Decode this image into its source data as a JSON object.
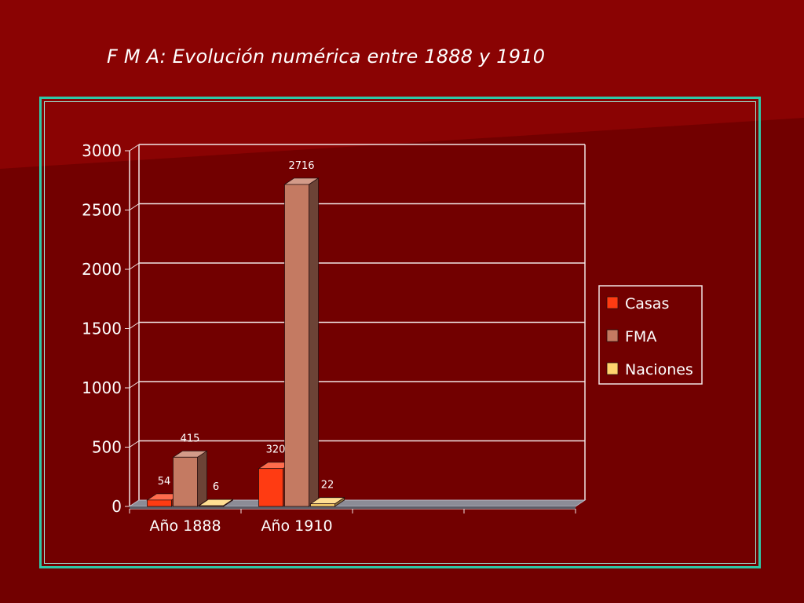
{
  "slide": {
    "title": "F M A: Evolución  numérica entre 1888  y  1910"
  },
  "colors": {
    "background": "#720000",
    "background_highlight": "#8a0303",
    "frame": "#2ec9a8",
    "gridline": "#f2e4e4"
  },
  "chart_data": {
    "type": "bar",
    "style": "3d-clustered-column",
    "title": "",
    "xlabel": "",
    "ylabel": "",
    "categories": [
      "Año 1888",
      "Año 1910"
    ],
    "empty_category_slots": 2,
    "ylim": [
      0,
      3000
    ],
    "yticks": [
      0,
      500,
      1000,
      1500,
      2000,
      2500,
      3000
    ],
    "grid": true,
    "legend_position": "right",
    "series": [
      {
        "name": "Casas",
        "values": [
          54,
          320
        ],
        "color": "#ff3b12"
      },
      {
        "name": "FMA",
        "values": [
          415,
          2716
        ],
        "color": "#c47a62"
      },
      {
        "name": "Naciones",
        "values": [
          6,
          22
        ],
        "color": "#ffd36e"
      }
    ],
    "data_labels": true
  }
}
